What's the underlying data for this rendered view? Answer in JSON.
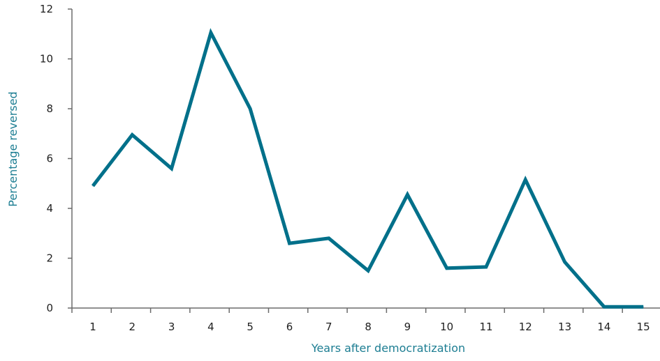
{
  "chart_data": {
    "type": "line",
    "title": "",
    "xlabel": "Years after democratization",
    "ylabel": "Percentage reversed",
    "x": [
      "1",
      "2",
      "3",
      "4",
      "5",
      "6",
      "7",
      "8",
      "9",
      "10",
      "11",
      "12",
      "13",
      "14",
      "15"
    ],
    "series": [
      {
        "values": [
          4.9,
          6.95,
          5.6,
          11.05,
          8.0,
          2.6,
          2.8,
          1.5,
          4.55,
          1.6,
          1.65,
          5.15,
          1.85,
          0.05,
          0.05
        ],
        "color": "#00708a"
      }
    ],
    "ylim": [
      0,
      12
    ],
    "yticks": [
      "0",
      "2",
      "4",
      "6",
      "8",
      "10",
      "12"
    ],
    "grid": false,
    "legend": "none",
    "colors": {
      "line": "#00708a",
      "axis_title": "#1c7d92",
      "tick_label": "#1f1f1f",
      "axis": "#6b6b6b"
    }
  }
}
